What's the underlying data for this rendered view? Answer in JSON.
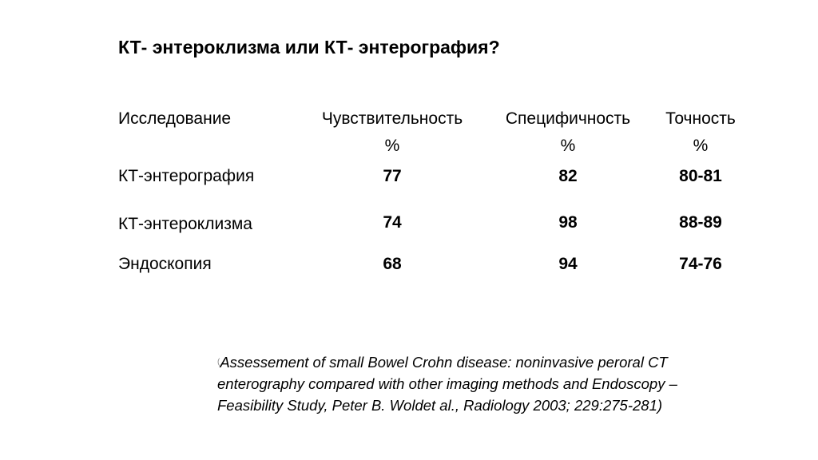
{
  "title": "КТ- энтероклизма или КТ- энтерография?",
  "table": {
    "headers": [
      {
        "label": "Исследование"
      },
      {
        "label": "Чувствительность",
        "unit": "%"
      },
      {
        "label": "Специфичность",
        "unit": "%"
      },
      {
        "label": "Точность",
        "unit": "%"
      }
    ],
    "rows": [
      {
        "method": "КТ-энтерография",
        "sensitivity": "77",
        "specificity": "82",
        "accuracy": "80-81"
      },
      {
        "method": "КТ-энтероклизма",
        "sensitivity": "74",
        "specificity": "98",
        "accuracy": "88-89"
      },
      {
        "method": "Эндоскопия",
        "sensitivity": "68",
        "specificity": "94",
        "accuracy": "74-76"
      }
    ]
  },
  "citation": {
    "marker": "(",
    "text_line1": "Assessement of small Bowel Crohn disease: noninvasive peroral CT",
    "text_line2": "enterography compared with other imaging methods and Endoscopy –",
    "text_line3": "Feasibility Study, Peter B. Woldet al.,  Radiology 2003; 229:275-281)"
  }
}
